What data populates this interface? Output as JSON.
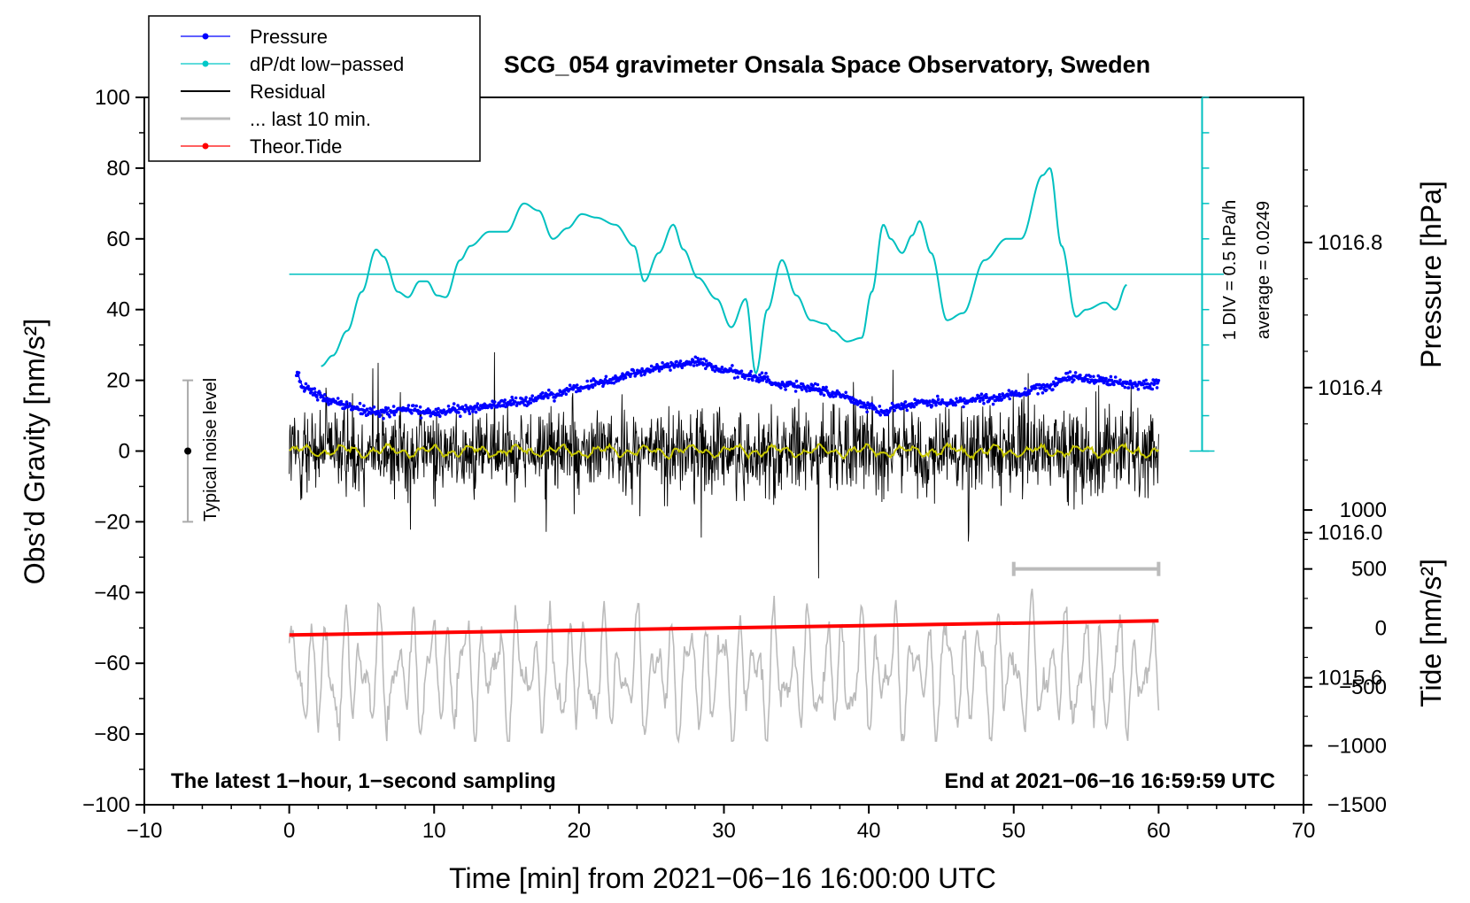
{
  "chart_data": {
    "type": "line",
    "title": "SCG_054 gravimeter Onsala Space Observatory, Sweden",
    "xlabel": "Time [min] from 2021−06−16 16:00:00 UTC",
    "ylabel": "Obs’d Gravity [nm/s²]",
    "ylabel_right_pressure": "Pressure [hPa]",
    "ylabel_right_tide": "Tide [nm/s²]",
    "xlim": [
      -10,
      70
    ],
    "ylim": [
      -100,
      100
    ],
    "x_ticks": [
      "−10",
      "0",
      "10",
      "20",
      "30",
      "40",
      "50",
      "60",
      "70"
    ],
    "x_tick_values": [
      -10,
      0,
      10,
      20,
      30,
      40,
      50,
      60,
      70
    ],
    "y_ticks": [
      "100",
      "80",
      "60",
      "40",
      "20",
      "0",
      "−20",
      "−40",
      "−60",
      "−80",
      "−100"
    ],
    "y_tick_values": [
      100,
      80,
      60,
      40,
      20,
      0,
      -20,
      -40,
      -60,
      -80,
      -100
    ],
    "pressure_ticks": [
      "1016.8",
      "1016.4",
      "1016.0",
      "1015.6"
    ],
    "pressure_tick_values": [
      1016.8,
      1016.4,
      1016.0,
      1015.6
    ],
    "pressure_ylim": [
      1015.25,
      1017.2
    ],
    "tide_ticks": [
      "1000",
      "500",
      "0",
      "−500",
      "−1000",
      "−1500"
    ],
    "tide_tick_values": [
      1000,
      500,
      0,
      -500,
      -1000,
      -1500
    ],
    "tide_ylim": [
      -1500,
      4500
    ],
    "legend": [
      {
        "label": "Pressure",
        "color": "#0000ff",
        "marker": true
      },
      {
        "label": "dP/dt low−passed",
        "color": "#00c8c8",
        "marker": true
      },
      {
        "label": "Residual",
        "color": "#000000",
        "marker": false
      },
      {
        "label": "... last 10 min.",
        "color": "#bbbbbb",
        "marker": false
      },
      {
        "label": "Theor.Tide",
        "color": "#ff0000",
        "marker": true
      }
    ],
    "annotations": {
      "bottom_left": "The latest 1−hour, 1−second sampling",
      "bottom_right": "End at 2021−06−16 16:59:59 UTC",
      "noise_label": "Typical noise level",
      "dpdt_scale": "1 DIV = 0.5 hPa/h",
      "dpdt_average": "average = 0.0249"
    },
    "noise_bar": {
      "x": -7,
      "center": 0,
      "half_range": 20
    },
    "dpdt_scale_bar": {
      "x": 63,
      "ymin": 0,
      "ymax": 100,
      "div": 10
    },
    "dpdt_baseline": 50,
    "last10_bar": {
      "tide_level": 500,
      "xmin": 50,
      "xmax": 60
    },
    "series": [
      {
        "name": "Pressure",
        "color": "#0000ff",
        "axis": "pressure",
        "x": [
          0.5,
          1,
          2,
          3,
          4,
          5,
          6,
          8,
          10,
          12,
          14,
          16,
          18,
          20,
          22,
          24,
          26,
          28,
          30,
          32,
          34,
          36,
          38,
          40,
          41,
          42,
          44,
          46,
          48,
          50,
          52,
          54,
          56,
          58,
          60
        ],
        "values": [
          1016.44,
          1016.4,
          1016.38,
          1016.36,
          1016.35,
          1016.34,
          1016.33,
          1016.34,
          1016.33,
          1016.34,
          1016.35,
          1016.36,
          1016.38,
          1016.4,
          1016.42,
          1016.44,
          1016.46,
          1016.47,
          1016.45,
          1016.43,
          1016.41,
          1016.4,
          1016.38,
          1016.35,
          1016.33,
          1016.35,
          1016.36,
          1016.36,
          1016.37,
          1016.38,
          1016.4,
          1016.43,
          1016.42,
          1016.41,
          1016.41
        ]
      },
      {
        "name": "dP/dt low−passed",
        "color": "#00c0c0",
        "axis": "gravity",
        "x": [
          2.2,
          3,
          4,
          5,
          6,
          6.5,
          7.5,
          8.2,
          9,
          9.5,
          10.2,
          10.8,
          11.8,
          12.5,
          13.8,
          15,
          16.2,
          17.2,
          18.2,
          19.2,
          20.2,
          21.2,
          22.5,
          23.8,
          24.5,
          25.5,
          26.5,
          27.2,
          28.2,
          29.5,
          30.5,
          31.5,
          32.2,
          33,
          34,
          35,
          36,
          37,
          37.5,
          38.5,
          39.5,
          40.2,
          41,
          41.5,
          42.3,
          43,
          43.5,
          44.3,
          45.4,
          46.5,
          48,
          49.5,
          50.5,
          52,
          52.5,
          53.3,
          54.3,
          55,
          56.3,
          57,
          57.8
        ],
        "values": [
          24,
          27,
          34,
          45,
          57,
          55,
          45,
          43.5,
          48,
          48,
          44,
          43.5,
          54,
          58,
          62,
          62,
          70,
          68,
          60,
          63,
          67,
          66,
          64,
          58,
          48,
          56,
          64,
          57,
          49,
          43,
          35,
          43,
          22,
          40,
          54,
          44,
          37,
          36,
          34,
          31,
          32,
          45,
          64,
          60,
          56,
          61,
          65,
          56,
          37,
          39,
          54,
          60,
          60,
          78,
          80,
          58,
          38,
          40,
          42,
          40,
          47
        ]
      },
      {
        "name": "Theor.Tide",
        "color": "#ff0000",
        "axis": "tide",
        "x": [
          0,
          60
        ],
        "values": [
          -60,
          60
        ]
      }
    ]
  }
}
